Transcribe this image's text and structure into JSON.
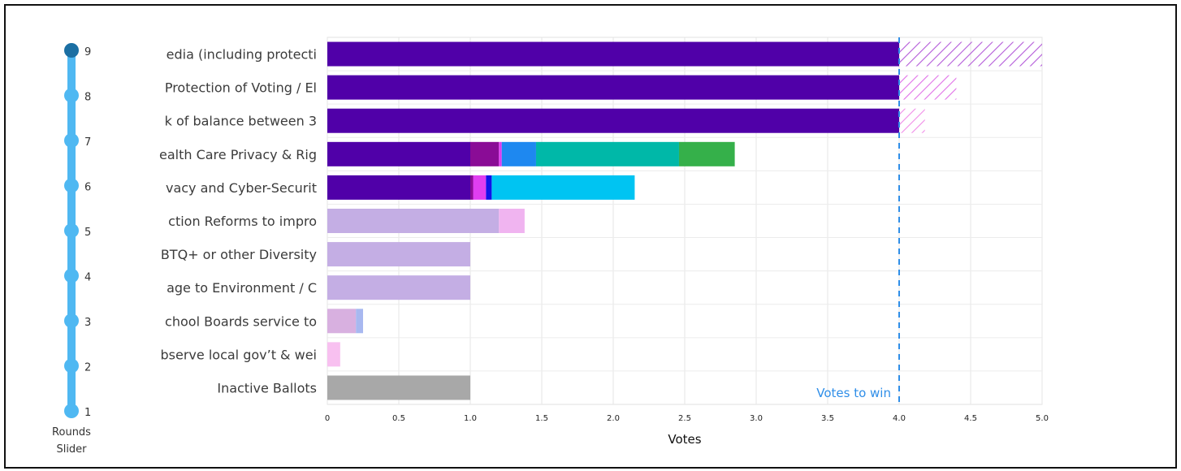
{
  "slider": {
    "rounds": [
      1,
      2,
      3,
      4,
      5,
      6,
      7,
      8,
      9
    ],
    "selected_round": 9,
    "caption_line1": "Rounds",
    "caption_line2": "Slider",
    "track_color": "#4fb8f2",
    "selected_color": "#1b6fa3"
  },
  "chart_data": {
    "type": "bar",
    "orientation": "horizontal",
    "stacked": true,
    "xlabel": "Votes",
    "xlim": [
      0,
      5.0
    ],
    "xticks": [
      "0",
      "0.5",
      "1.0",
      "1.5",
      "2.0",
      "2.5",
      "3.0",
      "3.5",
      "4.0",
      "4.5",
      "5.0"
    ],
    "grid": true,
    "threshold": {
      "value": 4.0,
      "label": "Votes to win",
      "color": "#2f8ee8"
    },
    "categories": [
      "edia (including protecti",
      "Protection of Voting / El",
      "k of balance between 3",
      "ealth Care Privacy & Rig",
      "vacy and Cyber-Securit",
      "ction Reforms to impro",
      "BTQ+ or other Diversity",
      "age to Environment / C",
      "chool Boards service to",
      "bserve local gov’t & wei",
      "Inactive Ballots"
    ],
    "rows": [
      {
        "segments": [
          {
            "from": 0,
            "to": 4.0,
            "color": "#5000a8",
            "style": "solid"
          },
          {
            "from": 4.0,
            "to": 5.0,
            "color": "#b35ad9",
            "style": "hatch"
          }
        ]
      },
      {
        "segments": [
          {
            "from": 0,
            "to": 4.0,
            "color": "#5000a8",
            "style": "solid"
          },
          {
            "from": 4.0,
            "to": 4.4,
            "color": "#e070e8",
            "style": "hatch"
          }
        ]
      },
      {
        "segments": [
          {
            "from": 0,
            "to": 4.0,
            "color": "#5000a8",
            "style": "solid"
          },
          {
            "from": 4.0,
            "to": 4.18,
            "color": "#f08ce8",
            "style": "hatch"
          }
        ]
      },
      {
        "segments": [
          {
            "from": 0,
            "to": 1.0,
            "color": "#5000a8",
            "style": "solid"
          },
          {
            "from": 1.0,
            "to": 1.2,
            "color": "#8a0c96",
            "style": "solid"
          },
          {
            "from": 1.2,
            "to": 1.22,
            "color": "#e03ef0",
            "style": "solid"
          },
          {
            "from": 1.22,
            "to": 1.46,
            "color": "#1e88f0",
            "style": "solid"
          },
          {
            "from": 1.46,
            "to": 2.46,
            "color": "#00b8a8",
            "style": "solid"
          },
          {
            "from": 2.46,
            "to": 2.85,
            "color": "#35b04a",
            "style": "solid"
          }
        ]
      },
      {
        "segments": [
          {
            "from": 0,
            "to": 1.0,
            "color": "#5000a8",
            "style": "solid"
          },
          {
            "from": 1.0,
            "to": 1.02,
            "color": "#8a0c96",
            "style": "solid"
          },
          {
            "from": 1.02,
            "to": 1.11,
            "color": "#e03ef0",
            "style": "solid"
          },
          {
            "from": 1.11,
            "to": 1.15,
            "color": "#1212e8",
            "style": "solid"
          },
          {
            "from": 1.15,
            "to": 2.15,
            "color": "#00c4f2",
            "style": "solid"
          }
        ]
      },
      {
        "segments": [
          {
            "from": 0,
            "to": 1.2,
            "color": "#c4aee4",
            "style": "solid"
          },
          {
            "from": 1.2,
            "to": 1.38,
            "color": "#f0b4f0",
            "style": "solid"
          }
        ]
      },
      {
        "segments": [
          {
            "from": 0,
            "to": 1.0,
            "color": "#c4aee4",
            "style": "solid"
          }
        ]
      },
      {
        "segments": [
          {
            "from": 0,
            "to": 1.0,
            "color": "#c4aee4",
            "style": "solid"
          }
        ]
      },
      {
        "segments": [
          {
            "from": 0,
            "to": 0.2,
            "color": "#d8b0e0",
            "style": "solid"
          },
          {
            "from": 0.2,
            "to": 0.25,
            "color": "#a8b8f0",
            "style": "solid"
          }
        ]
      },
      {
        "segments": [
          {
            "from": 0,
            "to": 0.09,
            "color": "#f8c0f0",
            "style": "solid"
          }
        ]
      },
      {
        "segments": [
          {
            "from": 0,
            "to": 1.0,
            "color": "#a8a8a8",
            "style": "solid"
          }
        ]
      }
    ]
  }
}
